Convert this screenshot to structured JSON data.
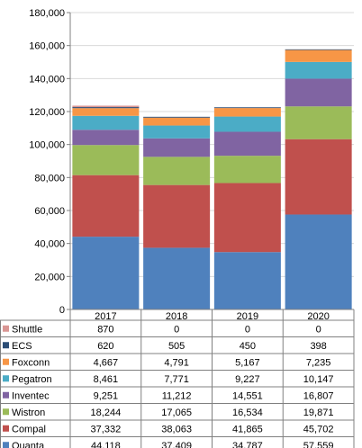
{
  "chart_data": {
    "type": "bar",
    "stacked": true,
    "categories": [
      "2017",
      "2018",
      "2019",
      "2020"
    ],
    "ylim": [
      0,
      180000
    ],
    "ytick_step": 20000,
    "grid": true,
    "legend": "data-table-left",
    "series": [
      {
        "name": "Quanta",
        "color": "#4f81bd",
        "values": [
          44118,
          37409,
          34787,
          57559
        ],
        "labels": [
          "44,118",
          "37,409",
          "34,787",
          "57,559"
        ]
      },
      {
        "name": "Compal",
        "color": "#c0504d",
        "values": [
          37332,
          38063,
          41865,
          45702
        ],
        "labels": [
          "37,332",
          "38,063",
          "41,865",
          "45,702"
        ]
      },
      {
        "name": "Wistron",
        "color": "#9bbb59",
        "values": [
          18244,
          17065,
          16534,
          19871
        ],
        "labels": [
          "18,244",
          "17,065",
          "16,534",
          "19,871"
        ]
      },
      {
        "name": "Inventec",
        "color": "#8064a2",
        "values": [
          9251,
          11212,
          14551,
          16807
        ],
        "labels": [
          "9,251",
          "11,212",
          "14,551",
          "16,807"
        ]
      },
      {
        "name": "Pegatron",
        "color": "#4bacc6",
        "values": [
          8461,
          7771,
          9227,
          10147
        ],
        "labels": [
          "8,461",
          "7,771",
          "9,227",
          "10,147"
        ]
      },
      {
        "name": "Foxconn",
        "color": "#f79646",
        "values": [
          4667,
          4791,
          5167,
          7235
        ],
        "labels": [
          "4,667",
          "4,791",
          "5,167",
          "7,235"
        ]
      },
      {
        "name": "ECS",
        "color": "#2c4d75",
        "values": [
          620,
          505,
          450,
          398
        ],
        "labels": [
          "620",
          "505",
          "450",
          "398"
        ]
      },
      {
        "name": "Shuttle",
        "color": "#d99694",
        "values": [
          870,
          0,
          0,
          0
        ],
        "labels": [
          "870",
          "0",
          "0",
          "0"
        ]
      }
    ]
  }
}
